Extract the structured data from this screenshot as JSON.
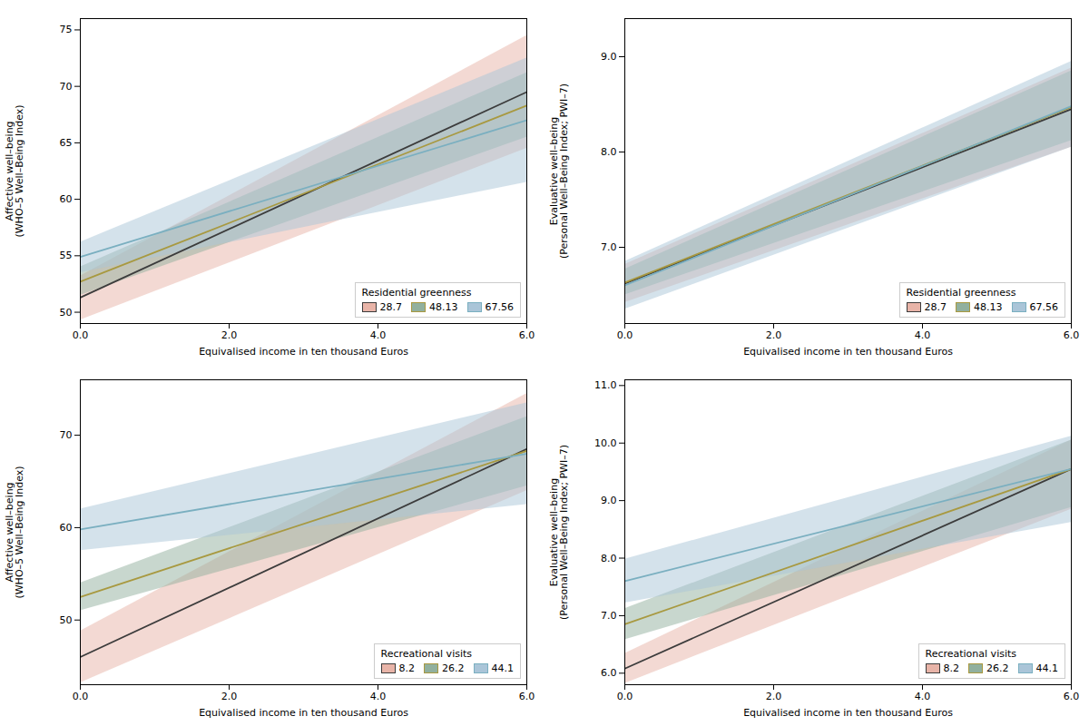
{
  "chart_data": [
    {
      "type": "line",
      "xlabel": "Equivalised income in ten thousand Euros",
      "ylabel": "Affective well–being\n(WHO–5 Well–Being Index)",
      "x": [
        0,
        6
      ],
      "xlim": [
        0,
        6
      ],
      "xticks": [
        0,
        2,
        4,
        6
      ],
      "ylim": [
        49,
        76
      ],
      "yticks": [
        50,
        55,
        60,
        65,
        70,
        75
      ],
      "legend": "lower right",
      "legend_title": "Residential greenness",
      "series": [
        {
          "name": "28.7",
          "color": "#3c3c3c",
          "values": [
            51.3,
            69.5
          ],
          "ci_color": "#e8b4a8",
          "ci_lower": [
            49.3,
            64.5
          ],
          "ci_upper": [
            53.2,
            74.5
          ]
        },
        {
          "name": "48.13",
          "color": "#a89940",
          "values": [
            52.7,
            68.3
          ],
          "ci_color": "#91b09e",
          "ci_lower": [
            51.5,
            65.5
          ],
          "ci_upper": [
            54.0,
            71.2
          ]
        },
        {
          "name": "67.56",
          "color": "#7aafc0",
          "values": [
            54.9,
            67.0
          ],
          "ci_color": "#aac5d8",
          "ci_lower": [
            53.5,
            61.5
          ],
          "ci_upper": [
            56.2,
            72.5
          ]
        }
      ]
    },
    {
      "type": "line",
      "xlabel": "Equivalised income in ten thousand Euros",
      "ylabel": "Evaluative well–being\n(Personal Well–Being Index; PWI–7)",
      "x": [
        0,
        6
      ],
      "xlim": [
        0,
        6
      ],
      "xticks": [
        0,
        2,
        4,
        6
      ],
      "ylim": [
        6.2,
        9.4
      ],
      "yticks": [
        7,
        8,
        9
      ],
      "legend": "lower right",
      "legend_title": "Residential greenness",
      "series": [
        {
          "name": "28.7",
          "color": "#3c3c3c",
          "values": [
            6.62,
            8.45
          ],
          "ci_color": "#e8b4a8",
          "ci_lower": [
            6.42,
            8.05
          ],
          "ci_upper": [
            6.82,
            8.88
          ]
        },
        {
          "name": "48.13",
          "color": "#a89940",
          "values": [
            6.63,
            8.47
          ],
          "ci_color": "#91b09e",
          "ci_lower": [
            6.5,
            8.12
          ],
          "ci_upper": [
            6.77,
            8.85
          ]
        },
        {
          "name": "67.56",
          "color": "#7aafc0",
          "values": [
            6.6,
            8.48
          ],
          "ci_color": "#aac5d8",
          "ci_lower": [
            6.35,
            8.05
          ],
          "ci_upper": [
            6.85,
            8.95
          ]
        }
      ]
    },
    {
      "type": "line",
      "xlabel": "Equivalised income in ten thousand Euros",
      "ylabel": "Affective well–being\n(WHO–5 Well–Being Index)",
      "x": [
        0,
        6
      ],
      "xlim": [
        0,
        6
      ],
      "xticks": [
        0,
        2,
        4,
        6
      ],
      "ylim": [
        43,
        76
      ],
      "yticks": [
        50,
        60,
        70
      ],
      "legend": "lower right",
      "legend_title": "Recreational visits",
      "series": [
        {
          "name": "8.2",
          "color": "#3c3c3c",
          "values": [
            46.0,
            68.5
          ],
          "ci_color": "#e8b4a8",
          "ci_lower": [
            43.2,
            64.0
          ],
          "ci_upper": [
            48.8,
            74.5
          ]
        },
        {
          "name": "26.2",
          "color": "#a89940",
          "values": [
            52.5,
            68.3
          ],
          "ci_color": "#91b09e",
          "ci_lower": [
            51.0,
            64.5
          ],
          "ci_upper": [
            54.0,
            72.0
          ]
        },
        {
          "name": "44.1",
          "color": "#7aafc0",
          "values": [
            59.8,
            68.0
          ],
          "ci_color": "#aac5d8",
          "ci_lower": [
            57.5,
            62.5
          ],
          "ci_upper": [
            62.0,
            73.5
          ]
        }
      ]
    },
    {
      "type": "line",
      "xlabel": "Equivalised income in ten thousand Euros",
      "ylabel": "Evaluative well–being\n(Personal Well–Being Index; PWI–7)",
      "x": [
        0,
        6
      ],
      "xlim": [
        0,
        6
      ],
      "xticks": [
        0,
        2,
        4,
        6
      ],
      "ylim": [
        5.8,
        11.1
      ],
      "yticks": [
        6,
        7,
        8,
        9,
        10,
        11
      ],
      "legend": "lower right",
      "legend_title": "Recreational visits",
      "series": [
        {
          "name": "8.2",
          "color": "#3c3c3c",
          "values": [
            6.08,
            9.55
          ],
          "ci_color": "#e8b4a8",
          "ci_lower": [
            5.82,
            8.85
          ],
          "ci_upper": [
            6.34,
            10.05
          ]
        },
        {
          "name": "26.2",
          "color": "#a89940",
          "values": [
            6.85,
            9.55
          ],
          "ci_color": "#91b09e",
          "ci_lower": [
            6.58,
            8.88
          ],
          "ci_upper": [
            7.12,
            10.05
          ]
        },
        {
          "name": "44.1",
          "color": "#7aafc0",
          "values": [
            7.6,
            9.55
          ],
          "ci_color": "#aac5d8",
          "ci_lower": [
            7.22,
            8.62
          ],
          "ci_upper": [
            7.98,
            10.12
          ]
        }
      ]
    }
  ]
}
